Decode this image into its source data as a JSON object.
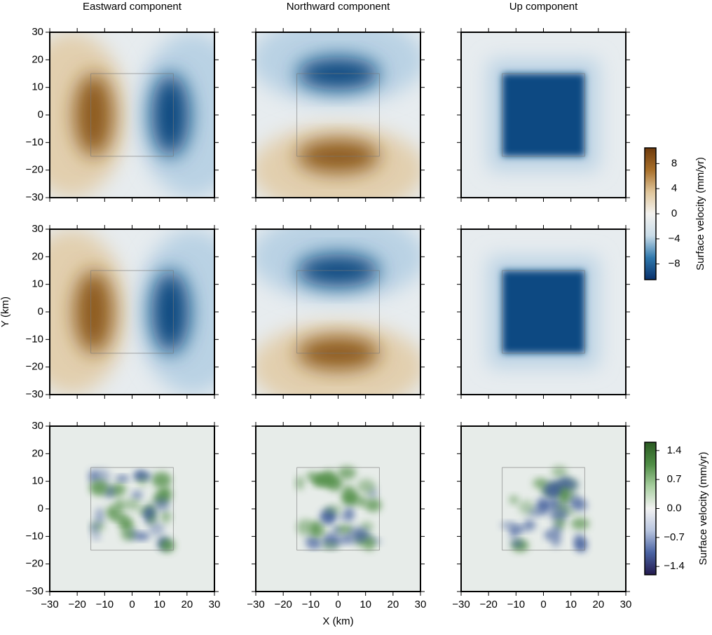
{
  "chart_data": {
    "type": "heatmap-grid",
    "column_titles": [
      "Eastward component",
      "Northward component",
      "Up component"
    ],
    "xlabel": "X (km)",
    "ylabel": "Y (km)",
    "xlim": [
      -30,
      30
    ],
    "ylim": [
      -30,
      30
    ],
    "xticks": [
      {
        "value": -30,
        "label": "−30"
      },
      {
        "value": -20,
        "label": "−20"
      },
      {
        "value": -10,
        "label": "−10"
      },
      0,
      10,
      20,
      30
    ],
    "yticks": [
      {
        "value": -30,
        "label": "−30"
      },
      {
        "value": -20,
        "label": "−20"
      },
      {
        "value": -10,
        "label": "−10"
      },
      0,
      10,
      20,
      30
    ],
    "colorbars": [
      {
        "label": "Surface velocity (mm/yr)",
        "lim": [
          -10.5,
          10.5
        ],
        "colors": [
          "#08306b",
          "#2f78ad",
          "#c9dce8",
          "#f3f2ef",
          "#dfc59a",
          "#a86f2a",
          "#6e3a0c"
        ],
        "ticks": [
          {
            "value": -8,
            "label": "−8"
          },
          {
            "value": -4,
            "label": "−4"
          },
          0,
          4,
          8
        ]
      },
      {
        "label": "Surface velocity (mm/yr)",
        "lim": [
          -1.6,
          1.6
        ],
        "colors": [
          "#241b4f",
          "#4a63a3",
          "#b8c5df",
          "#f2f2f2",
          "#a8cfa0",
          "#4f8d45",
          "#2a5a22"
        ],
        "ticks": [
          {
            "value": -1.4,
            "label": "−1.4"
          },
          {
            "value": -0.7,
            "label": "−0.7"
          },
          {
            "value": 0,
            "label": "0.0"
          },
          0.7,
          1.4
        ]
      }
    ]
  }
}
